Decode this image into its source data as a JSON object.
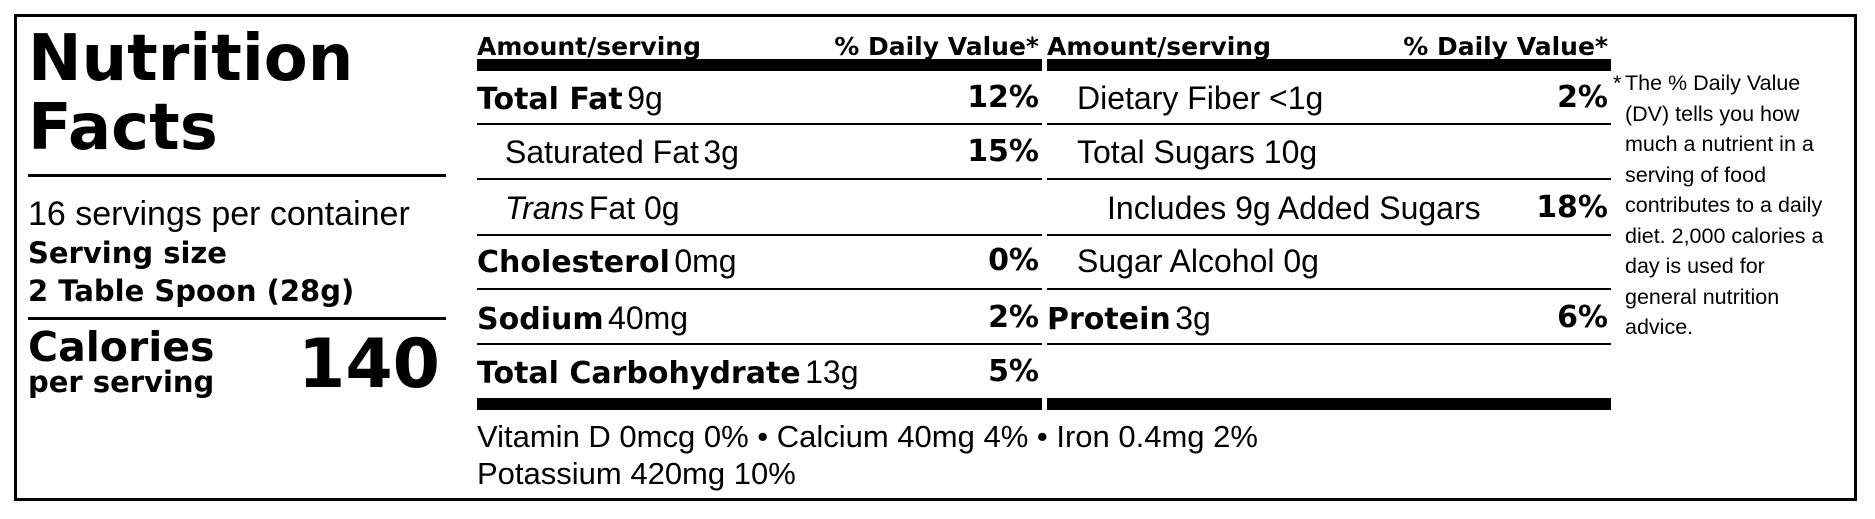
{
  "label": {
    "title": "Nutrition Facts",
    "servings_per_container": "16 servings per container",
    "serving_size_label": "Serving size",
    "serving_size_value": "2 Table Spoon (28g)",
    "calories_label": "Calories",
    "per_serving_label": "per serving",
    "calories_value": "140"
  },
  "headers": {
    "amount": "Amount/serving",
    "daily_value": "% Daily Value*"
  },
  "left_column": [
    {
      "name": "Total Fat",
      "amount": "9g",
      "dv": "12%"
    },
    {
      "name": "Saturated Fat",
      "amount": "3g",
      "dv": "15%"
    },
    {
      "name": "Trans",
      "name_rest": "Fat 0g",
      "dv": ""
    },
    {
      "name": "Cholesterol",
      "amount": "0mg",
      "dv": "0%"
    },
    {
      "name": "Sodium",
      "amount": "40mg",
      "dv": "2%"
    },
    {
      "name": "Total Carbohydrate",
      "amount": "13g",
      "dv": "5%"
    }
  ],
  "right_column": [
    {
      "name": "Dietary Fiber <1g",
      "dv": "2%"
    },
    {
      "name": "Total Sugars 10g",
      "dv": ""
    },
    {
      "name": "Includes 9g Added Sugars",
      "dv": "18%"
    },
    {
      "name": "Sugar Alcohol 0g",
      "dv": ""
    },
    {
      "name": "Protein",
      "amount": "3g",
      "dv": "6%"
    }
  ],
  "vitamins": {
    "line1": "Vitamin D 0mcg 0% • Calcium 40mg 4% • Iron 0.4mg 2%",
    "line2": "Potassium 420mg 10%"
  },
  "footnote": {
    "star": "*",
    "text": "The % Daily Value (DV) tells you how much a nutrient in a serving of food contributes to a daily diet. 2,000 calories a day is used for general nutrition advice."
  }
}
